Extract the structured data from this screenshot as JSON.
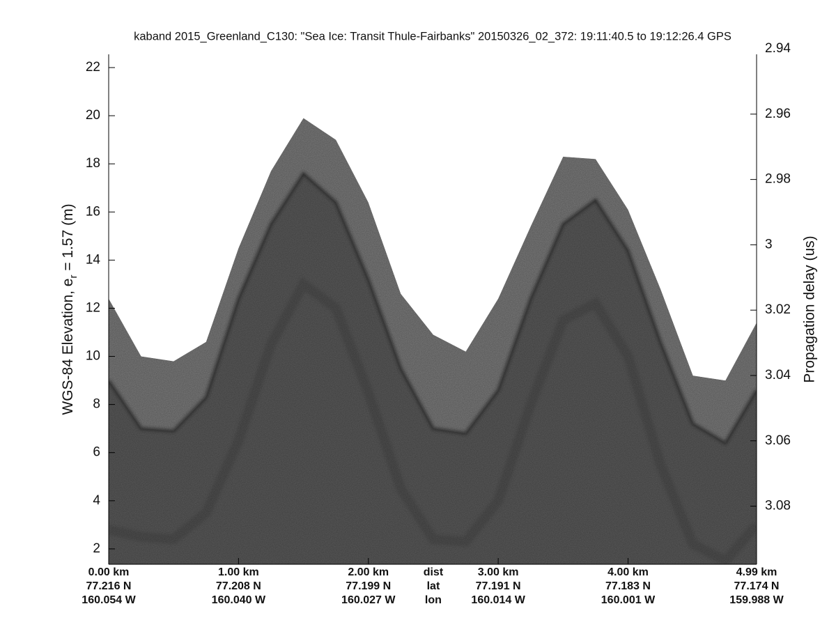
{
  "chart_data": {
    "type": "echogram",
    "title": "kaband 2015_Greenland_C130: \"Sea Ice: Transit Thule-Fairbanks\"  20150326_02_372: 19:11:40.5 to 19:12:26.4 GPS",
    "ylabel": "WGS-84 Elevation, e",
    "ylabel_sub": "r",
    "ylabel_end": " = 1.57 (m)",
    "y2label": "Propagation delay (us)",
    "xlim": [
      0,
      4.99
    ],
    "ylim": [
      1.36,
      22.55
    ],
    "yticks": [
      2,
      4,
      6,
      8,
      10,
      12,
      14,
      16,
      18,
      20,
      22
    ],
    "y2lim": [
      2.9417,
      3.0978
    ],
    "y2ticks": [
      2.94,
      2.96,
      2.98,
      3,
      3.02,
      3.04,
      3.06,
      3.08
    ],
    "xticks": [
      {
        "value": 0,
        "label": "0.00 km"
      },
      {
        "value": 1,
        "label": "1.00 km"
      },
      {
        "value": 2,
        "label": "2.00 km"
      },
      {
        "value": 3,
        "label": "3.00 km"
      },
      {
        "value": 4,
        "label": "4.00 km"
      },
      {
        "value": 4.99,
        "label": "4.99 km"
      }
    ],
    "xtick_lat": [
      "77.216 N",
      "77.208 N",
      "77.199 N",
      "77.191 N",
      "77.183 N",
      "77.174 N"
    ],
    "xtick_lon": [
      "160.054 W",
      "160.040 W",
      "160.027 W",
      "160.014 W",
      "160.001 W",
      "159.988 W"
    ],
    "x_row_titles": [
      "dist",
      "lat",
      "lon"
    ],
    "x": [
      0,
      0.25,
      0.5,
      0.75,
      1,
      1.25,
      1.5,
      1.75,
      2,
      2.25,
      2.5,
      2.75,
      3,
      3.25,
      3.5,
      3.75,
      4,
      4.25,
      4.5,
      4.75,
      4.99
    ],
    "series": [
      {
        "color": "#7c7c7c",
        "values": [
          12.4,
          10.0,
          9.8,
          10.6,
          14.5,
          17.7,
          19.9,
          19.0,
          16.4,
          12.6,
          10.9,
          10.2,
          12.4,
          15.4,
          18.3,
          18.2,
          16.1,
          12.8,
          9.2,
          9.0,
          11.4
        ]
      },
      {
        "color": "#5b5b5b",
        "values": [
          9.0,
          7.0,
          6.9,
          8.3,
          12.4,
          15.5,
          17.6,
          16.4,
          13.2,
          9.5,
          7.0,
          6.8,
          8.6,
          12.4,
          15.5,
          16.5,
          14.4,
          10.6,
          7.2,
          6.4,
          8.6
        ]
      },
      {
        "color": "#4a4a4a",
        "values": [
          2.8,
          2.5,
          2.4,
          3.5,
          6.5,
          10.5,
          13.0,
          12.0,
          8.5,
          4.5,
          2.4,
          2.3,
          4.0,
          8.0,
          11.5,
          12.2,
          10.0,
          5.5,
          2.2,
          1.5,
          3.0
        ]
      }
    ]
  }
}
